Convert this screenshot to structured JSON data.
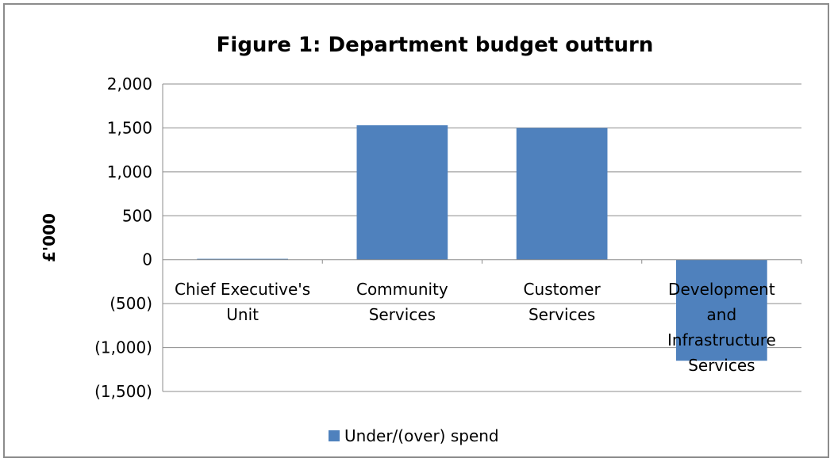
{
  "chart_data": {
    "type": "bar",
    "title": "Figure 1: Department budget outturn",
    "ylabel": "£'000",
    "xlabel": "",
    "categories": [
      [
        "Chief Executive's",
        "Unit"
      ],
      [
        "Community",
        "Services"
      ],
      [
        "Customer",
        "Services"
      ],
      [
        "Development",
        "and",
        "Infrastructure",
        "Services"
      ]
    ],
    "series": [
      {
        "name": "Under/(over) spend",
        "values": [
          10,
          1530,
          1500,
          -1150
        ],
        "color": "#4f81bd"
      }
    ],
    "ylim": [
      -1500,
      2000
    ],
    "yticks": [
      2000,
      1500,
      1000,
      500,
      0,
      -500,
      -1000,
      -1500
    ],
    "ytick_labels": [
      "2,000",
      "1,500",
      "1,000",
      "500",
      "0",
      "(500)",
      "(1,000)",
      "(1,500)"
    ],
    "grid": true,
    "legend": "bottom"
  }
}
